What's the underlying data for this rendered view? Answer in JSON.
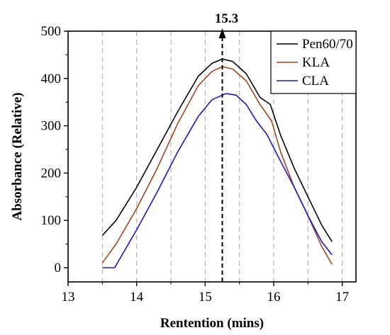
{
  "chart_data": {
    "type": "line",
    "xlabel": "Rentention (mins)",
    "ylabel": "Absorbance (Relative)",
    "xlim": [
      13,
      17.2
    ],
    "ylim": [
      -30,
      500
    ],
    "xticks": [
      13,
      14,
      15,
      16,
      17
    ],
    "yticks": [
      0,
      100,
      200,
      300,
      400,
      500
    ],
    "grid": "vertical dashed lines every 0.5 min",
    "gridlines_x": [
      13.5,
      14,
      14.5,
      15,
      15.5,
      16,
      16.5,
      17
    ],
    "legend": {
      "position": "top-right"
    },
    "annotation": {
      "text": "15.3",
      "x": 15.25
    },
    "series": [
      {
        "name": "Pen60/70",
        "color": "#000000",
        "x": [
          13.5,
          13.7,
          14.0,
          14.3,
          14.6,
          14.9,
          15.1,
          15.25,
          15.4,
          15.6,
          15.8,
          15.95,
          16.1,
          16.3,
          16.5,
          16.7,
          16.85
        ],
        "y": [
          68,
          100,
          170,
          250,
          330,
          405,
          432,
          441,
          436,
          410,
          360,
          345,
          280,
          210,
          150,
          90,
          55
        ]
      },
      {
        "name": "KLA",
        "color": "#a0461f",
        "x": [
          13.5,
          13.7,
          14.0,
          14.3,
          14.6,
          14.9,
          15.1,
          15.25,
          15.4,
          15.6,
          15.8,
          15.97,
          16.1,
          16.3,
          16.5,
          16.7,
          16.85
        ],
        "y": [
          10,
          50,
          125,
          210,
          305,
          385,
          415,
          425,
          420,
          395,
          345,
          310,
          245,
          170,
          110,
          45,
          7
        ]
      },
      {
        "name": "CLA",
        "color": "#1c16c8",
        "x": [
          13.5,
          13.68,
          14.0,
          14.3,
          14.6,
          14.9,
          15.1,
          15.3,
          15.45,
          15.6,
          15.75,
          15.9,
          16.1,
          16.3,
          16.5,
          16.7,
          16.85
        ],
        "y": [
          0,
          0,
          80,
          160,
          245,
          320,
          355,
          368,
          365,
          345,
          310,
          282,
          225,
          170,
          110,
          55,
          27
        ]
      }
    ]
  }
}
